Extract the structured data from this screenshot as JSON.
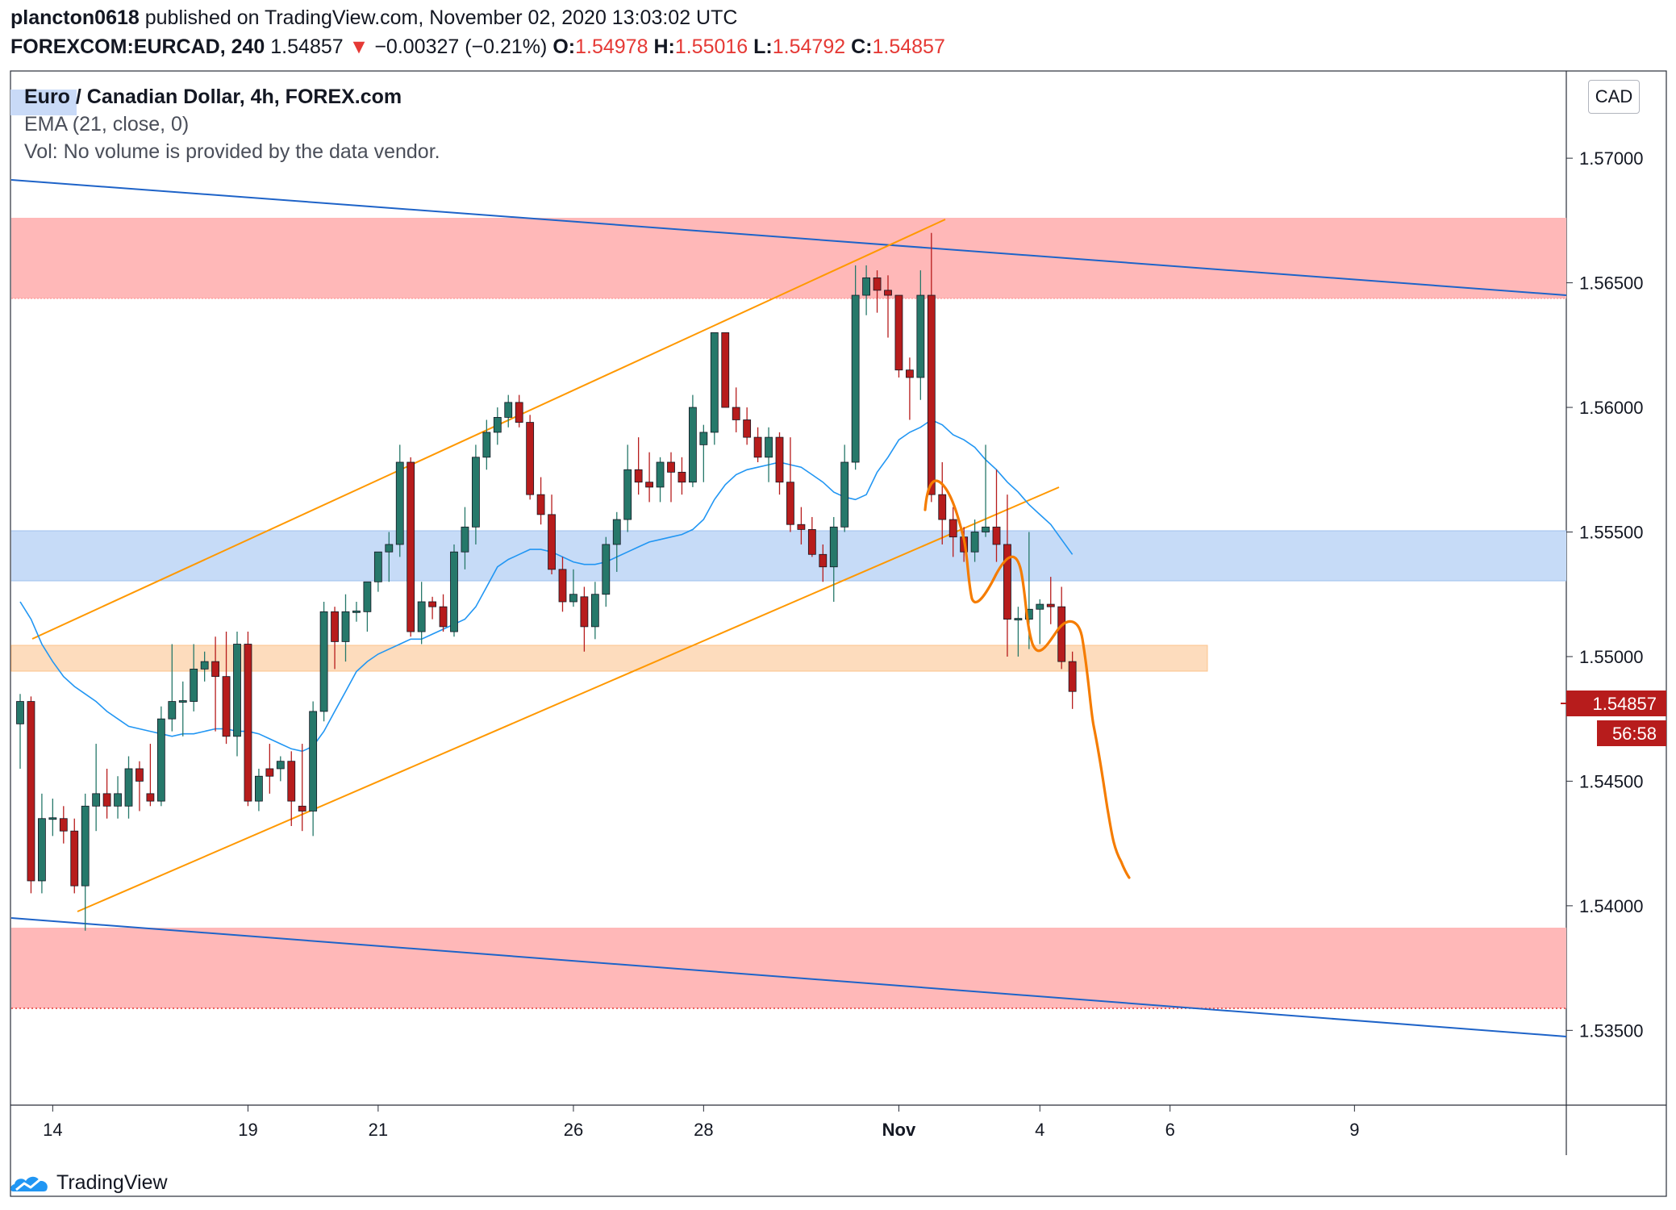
{
  "header": {
    "author": "plancton0618",
    "published_text": "published on TradingView.com, November 02, 2020 13:03:02 UTC",
    "symbol": "FOREXCOM:EURCAD, 240",
    "last_price": "1.54857",
    "change": "−0.00327 (−0.21%)",
    "open_label": "O:",
    "open": "1.54978",
    "high_label": "H:",
    "high": "1.55016",
    "low_label": "L:",
    "low": "1.54792",
    "close_label": "C:",
    "close": "1.54857"
  },
  "legend": {
    "title": "Euro / Canadian Dollar, 4h, FOREX.com",
    "ema": "EMA (21, close, 0)",
    "vol": "Vol: No volume is provided by the data vendor."
  },
  "currency_label": "CAD",
  "price_badge": "1.54857",
  "timer_badge": "56:58",
  "footer": {
    "brand": "TradingView"
  },
  "colors": {
    "up": "#26786a",
    "down": "#b71c1c",
    "ema": "#2196f3",
    "trend": "#1e63c8",
    "channel": "#ff9800",
    "forecast": "#f57c00",
    "resistance_zone": "#ffb8b8",
    "support_zone": "#c6dbf7",
    "orange_zone": "#fddcbd"
  },
  "chart_data": {
    "type": "candlestick",
    "timeframe": "4h",
    "y_ticks": [
      "1.57000",
      "1.56500",
      "1.56000",
      "1.55500",
      "1.55000",
      "1.54500",
      "1.54000",
      "1.53500"
    ],
    "ylim": [
      1.532,
      1.5735
    ],
    "x_ticks": [
      {
        "label": "14",
        "i": 3
      },
      {
        "label": "19",
        "i": 21
      },
      {
        "label": "21",
        "i": 33
      },
      {
        "label": "26",
        "i": 51
      },
      {
        "label": "28",
        "i": 63
      },
      {
        "label": "Nov",
        "i": 81
      },
      {
        "label": "4",
        "i": 94
      },
      {
        "label": "6",
        "i": 106
      },
      {
        "label": "9",
        "i": 123
      }
    ],
    "candles": [
      [
        1.5473,
        1.5485,
        1.5455,
        1.5482
      ],
      [
        1.5482,
        1.5484,
        1.5405,
        1.541
      ],
      [
        1.541,
        1.5445,
        1.5405,
        1.5435
      ],
      [
        1.5435,
        1.5443,
        1.5428,
        1.5435
      ],
      [
        1.5435,
        1.544,
        1.5425,
        1.543
      ],
      [
        1.543,
        1.5435,
        1.5405,
        1.5408
      ],
      [
        1.5408,
        1.5445,
        1.539,
        1.544
      ],
      [
        1.544,
        1.5465,
        1.543,
        1.5445
      ],
      [
        1.5445,
        1.5455,
        1.5435,
        1.544
      ],
      [
        1.544,
        1.5452,
        1.5435,
        1.5445
      ],
      [
        1.544,
        1.546,
        1.5435,
        1.5455
      ],
      [
        1.5455,
        1.5458,
        1.5438,
        1.545
      ],
      [
        1.5445,
        1.5465,
        1.544,
        1.5442
      ],
      [
        1.5442,
        1.548,
        1.544,
        1.5475
      ],
      [
        1.5475,
        1.5505,
        1.547,
        1.5482
      ],
      [
        1.5482,
        1.549,
        1.5468,
        1.5482
      ],
      [
        1.5482,
        1.5505,
        1.5478,
        1.5495
      ],
      [
        1.5495,
        1.5502,
        1.549,
        1.5498
      ],
      [
        1.5498,
        1.5508,
        1.547,
        1.5492
      ],
      [
        1.5492,
        1.551,
        1.5465,
        1.5468
      ],
      [
        1.5468,
        1.551,
        1.546,
        1.5505
      ],
      [
        1.5505,
        1.551,
        1.544,
        1.5442
      ],
      [
        1.5442,
        1.5455,
        1.5438,
        1.5452
      ],
      [
        1.5455,
        1.5465,
        1.5445,
        1.5452
      ],
      [
        1.5455,
        1.546,
        1.545,
        1.5458
      ],
      [
        1.5458,
        1.5462,
        1.5432,
        1.5442
      ],
      [
        1.544,
        1.5465,
        1.543,
        1.5438
      ],
      [
        1.5438,
        1.5482,
        1.5428,
        1.5478
      ],
      [
        1.5478,
        1.5522,
        1.5474,
        1.5518
      ],
      [
        1.5518,
        1.552,
        1.5495,
        1.5506
      ],
      [
        1.5506,
        1.5525,
        1.5498,
        1.5518
      ],
      [
        1.5518,
        1.5522,
        1.5514,
        1.5518
      ],
      [
        1.5518,
        1.553,
        1.551,
        1.553
      ],
      [
        1.553,
        1.5542,
        1.5526,
        1.5542
      ],
      [
        1.5542,
        1.555,
        1.553,
        1.5545
      ],
      [
        1.5545,
        1.5585,
        1.554,
        1.5578
      ],
      [
        1.5578,
        1.558,
        1.5508,
        1.551
      ],
      [
        1.551,
        1.553,
        1.5505,
        1.5522
      ],
      [
        1.5522,
        1.5524,
        1.5515,
        1.552
      ],
      [
        1.552,
        1.5525,
        1.551,
        1.5512
      ],
      [
        1.551,
        1.5545,
        1.5508,
        1.5542
      ],
      [
        1.5542,
        1.556,
        1.5535,
        1.5552
      ],
      [
        1.5552,
        1.5585,
        1.5545,
        1.558
      ],
      [
        1.558,
        1.5595,
        1.5575,
        1.559
      ],
      [
        1.559,
        1.56,
        1.5585,
        1.5596
      ],
      [
        1.5596,
        1.5605,
        1.5592,
        1.5602
      ],
      [
        1.5602,
        1.5605,
        1.5592,
        1.5594
      ],
      [
        1.5594,
        1.5597,
        1.5563,
        1.5565
      ],
      [
        1.5565,
        1.5572,
        1.5553,
        1.5557
      ],
      [
        1.5557,
        1.5565,
        1.5533,
        1.5535
      ],
      [
        1.5535,
        1.554,
        1.5518,
        1.5522
      ],
      [
        1.5522,
        1.5535,
        1.552,
        1.5525
      ],
      [
        1.5524,
        1.5528,
        1.5502,
        1.5512
      ],
      [
        1.5512,
        1.553,
        1.5507,
        1.5525
      ],
      [
        1.5525,
        1.5548,
        1.552,
        1.5545
      ],
      [
        1.5545,
        1.5558,
        1.5534,
        1.5555
      ],
      [
        1.5555,
        1.5585,
        1.555,
        1.5575
      ],
      [
        1.5575,
        1.5588,
        1.5565,
        1.557
      ],
      [
        1.557,
        1.5582,
        1.5562,
        1.5568
      ],
      [
        1.5568,
        1.558,
        1.5562,
        1.5578
      ],
      [
        1.5578,
        1.5582,
        1.5562,
        1.5574
      ],
      [
        1.5574,
        1.558,
        1.5565,
        1.557
      ],
      [
        1.557,
        1.5605,
        1.5568,
        1.56
      ],
      [
        1.5585,
        1.5593,
        1.557,
        1.559
      ],
      [
        1.559,
        1.563,
        1.5585,
        1.563
      ],
      [
        1.563,
        1.563,
        1.56,
        1.56
      ],
      [
        1.56,
        1.5608,
        1.559,
        1.5595
      ],
      [
        1.5595,
        1.56,
        1.5585,
        1.5588
      ],
      [
        1.5588,
        1.5592,
        1.5578,
        1.558
      ],
      [
        1.558,
        1.5592,
        1.557,
        1.5588
      ],
      [
        1.5588,
        1.559,
        1.5565,
        1.557
      ],
      [
        1.557,
        1.5588,
        1.555,
        1.5553
      ],
      [
        1.5553,
        1.556,
        1.5545,
        1.5551
      ],
      [
        1.5551,
        1.5556,
        1.554,
        1.5541
      ],
      [
        1.5541,
        1.5545,
        1.553,
        1.5536
      ],
      [
        1.5536,
        1.5556,
        1.5522,
        1.5552
      ],
      [
        1.5552,
        1.5585,
        1.555,
        1.5578
      ],
      [
        1.5578,
        1.5657,
        1.5575,
        1.5645
      ],
      [
        1.5645,
        1.5657,
        1.5637,
        1.5652
      ],
      [
        1.5652,
        1.5655,
        1.5638,
        1.5647
      ],
      [
        1.5647,
        1.5653,
        1.5628,
        1.5645
      ],
      [
        1.5645,
        1.5645,
        1.5612,
        1.5615
      ],
      [
        1.5615,
        1.562,
        1.5595,
        1.5612
      ],
      [
        1.5612,
        1.5655,
        1.5603,
        1.5645
      ],
      [
        1.5645,
        1.567,
        1.5562,
        1.5565
      ],
      [
        1.5565,
        1.5578,
        1.5545,
        1.5555
      ],
      [
        1.5555,
        1.556,
        1.554,
        1.5548
      ],
      [
        1.5548,
        1.5552,
        1.5538,
        1.5542
      ],
      [
        1.5542,
        1.5555,
        1.5538,
        1.555
      ],
      [
        1.555,
        1.5585,
        1.5548,
        1.5552
      ],
      [
        1.5552,
        1.5575,
        1.5538,
        1.5545
      ],
      [
        1.5545,
        1.5565,
        1.55,
        1.5515
      ],
      [
        1.5515,
        1.552,
        1.55,
        1.5515
      ],
      [
        1.5515,
        1.555,
        1.5503,
        1.5519
      ],
      [
        1.5519,
        1.5523,
        1.5505,
        1.5521
      ],
      [
        1.5521,
        1.5532,
        1.5513,
        1.552
      ],
      [
        1.552,
        1.5528,
        1.5495,
        1.5498
      ],
      [
        1.5498,
        1.5502,
        1.5479,
        1.5486
      ]
    ],
    "ema21": [
      1.5522,
      1.5515,
      1.5505,
      1.5498,
      1.5492,
      1.5488,
      1.5485,
      1.5482,
      1.5478,
      1.5475,
      1.5472,
      1.5471,
      1.547,
      1.5469,
      1.5468,
      1.5469,
      1.5469,
      1.547,
      1.5471,
      1.5471,
      1.547,
      1.547,
      1.5469,
      1.5467,
      1.5465,
      1.5463,
      1.5462,
      1.5464,
      1.547,
      1.5478,
      1.5486,
      1.5494,
      1.5498,
      1.5501,
      1.5503,
      1.5505,
      1.5507,
      1.5507,
      1.5509,
      1.5511,
      1.5513,
      1.5515,
      1.552,
      1.5528,
      1.5536,
      1.5539,
      1.5541,
      1.5543,
      1.5543,
      1.5542,
      1.554,
      1.5538,
      1.5537,
      1.5537,
      1.5538,
      1.554,
      1.5542,
      1.5544,
      1.5546,
      1.5547,
      1.5548,
      1.5549,
      1.5551,
      1.5555,
      1.5563,
      1.5569,
      1.5573,
      1.5575,
      1.5576,
      1.5577,
      1.5578,
      1.5577,
      1.5576,
      1.5573,
      1.557,
      1.5566,
      1.5564,
      1.5563,
      1.5565,
      1.5574,
      1.558,
      1.5587,
      1.559,
      1.5592,
      1.5595,
      1.5593,
      1.5589,
      1.5587,
      1.5584,
      1.5579,
      1.5575,
      1.557,
      1.5566,
      1.5561,
      1.5557,
      1.5553,
      1.5547,
      1.5541
    ]
  }
}
